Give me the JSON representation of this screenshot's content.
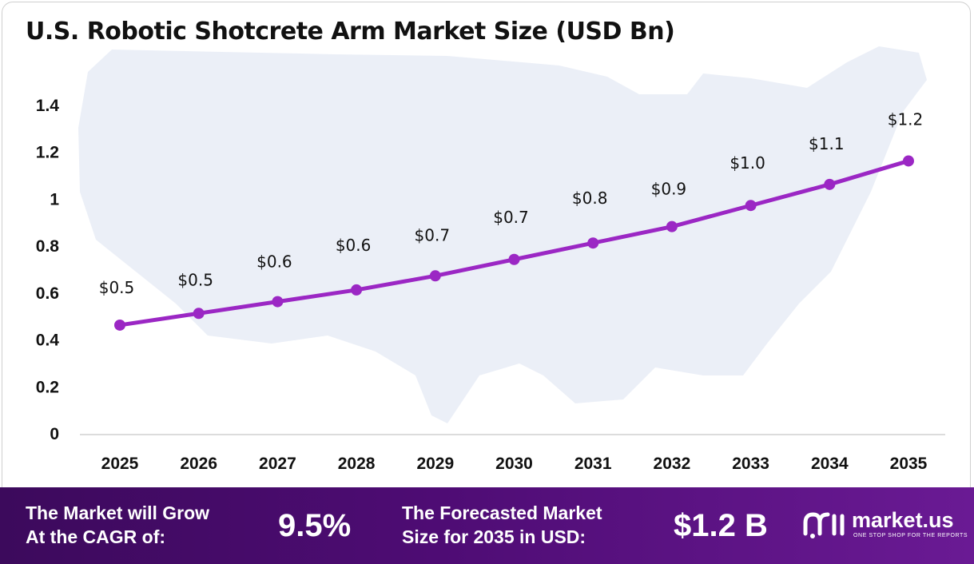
{
  "chart_data": {
    "type": "line",
    "title": "U.S. Robotic Shotcrete Arm Market Size (USD Bn)",
    "categories": [
      "2025",
      "2026",
      "2027",
      "2028",
      "2029",
      "2030",
      "2031",
      "2032",
      "2033",
      "2034",
      "2035"
    ],
    "values": [
      0.46,
      0.51,
      0.56,
      0.61,
      0.67,
      0.74,
      0.81,
      0.88,
      0.97,
      1.06,
      1.16
    ],
    "data_labels": [
      "$0.5",
      "$0.5",
      "$0.6",
      "$0.6",
      "$0.7",
      "$0.7",
      "$0.8",
      "$0.9",
      "$1.0",
      "$1.1",
      "$1.2"
    ],
    "yticks": [
      "0",
      "0.2",
      "0.4",
      "0.6",
      "0.8",
      "1",
      "1.2",
      "1.4"
    ],
    "ylim": [
      0,
      1.4
    ],
    "grid": false,
    "legend": "none",
    "line_color": "#9b27c4",
    "marker_color": "#9b27c4"
  },
  "footer": {
    "cagr_label_line1": "The Market will Grow",
    "cagr_label_line2": "At the CAGR of:",
    "cagr_value": "9.5%",
    "forecast_label_line1": "The Forecasted Market",
    "forecast_label_line2": "Size for 2035 in USD:",
    "forecast_value": "$1.2 B",
    "background_color": "#4e0c74"
  },
  "logo": {
    "name": "market.us",
    "tagline": "ONE STOP SHOP FOR THE REPORTS",
    "icon": "market-us-logo-icon"
  }
}
